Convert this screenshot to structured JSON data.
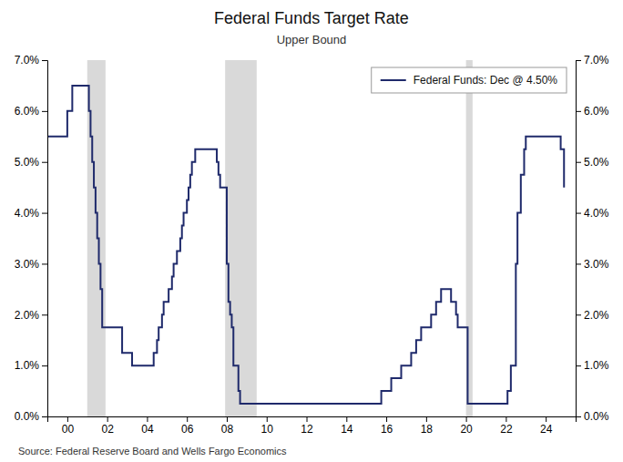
{
  "chart_data": {
    "type": "line",
    "title": "Federal Funds Target Rate",
    "subtitle": "Upper Bound",
    "annotations": [
      "Source: Federal Reserve Board and Wells Fargo Economics"
    ],
    "x": [
      1999.0,
      1999.083,
      1999.167,
      1999.25,
      1999.333,
      1999.417,
      1999.5,
      1999.583,
      1999.667,
      1999.75,
      1999.833,
      1999.917,
      2000.0,
      2000.083,
      2000.167,
      2000.25,
      2000.333,
      2000.417,
      2000.5,
      2000.583,
      2000.667,
      2000.75,
      2000.833,
      2000.917,
      2001.0,
      2001.083,
      2001.167,
      2001.25,
      2001.333,
      2001.417,
      2001.5,
      2001.583,
      2001.667,
      2001.75,
      2001.833,
      2001.917,
      2002.0,
      2002.083,
      2002.167,
      2002.25,
      2002.333,
      2002.417,
      2002.5,
      2002.583,
      2002.667,
      2002.75,
      2002.833,
      2002.917,
      2003.0,
      2003.083,
      2003.167,
      2003.25,
      2003.333,
      2003.417,
      2003.5,
      2003.583,
      2003.667,
      2003.75,
      2003.833,
      2003.917,
      2004.0,
      2004.083,
      2004.167,
      2004.25,
      2004.333,
      2004.417,
      2004.5,
      2004.583,
      2004.667,
      2004.75,
      2004.833,
      2004.917,
      2005.0,
      2005.083,
      2005.167,
      2005.25,
      2005.333,
      2005.417,
      2005.5,
      2005.583,
      2005.667,
      2005.75,
      2005.833,
      2005.917,
      2006.0,
      2006.083,
      2006.167,
      2006.25,
      2006.333,
      2006.417,
      2006.5,
      2006.583,
      2006.667,
      2006.75,
      2006.833,
      2006.917,
      2007.0,
      2007.083,
      2007.167,
      2007.25,
      2007.333,
      2007.417,
      2007.5,
      2007.583,
      2007.667,
      2007.75,
      2007.833,
      2007.917,
      2008.0,
      2008.083,
      2008.167,
      2008.25,
      2008.333,
      2008.417,
      2008.5,
      2008.583,
      2008.667,
      2008.75,
      2008.833,
      2008.917,
      2009.0,
      2009.083,
      2009.167,
      2009.25,
      2009.333,
      2009.417,
      2009.5,
      2009.583,
      2009.667,
      2009.75,
      2009.833,
      2009.917,
      2010.0,
      2010.083,
      2010.5,
      2011.0,
      2011.5,
      2012.0,
      2012.5,
      2013.0,
      2013.5,
      2014.0,
      2014.5,
      2015.0,
      2015.25,
      2015.5,
      2015.75,
      2016.0,
      2016.25,
      2016.5,
      2016.75,
      2017.0,
      2017.083,
      2017.25,
      2017.5,
      2017.75,
      2018.0,
      2018.083,
      2018.25,
      2018.5,
      2018.75,
      2019.0,
      2019.083,
      2019.25,
      2019.5,
      2019.583,
      2019.75,
      2019.917,
      2020.0,
      2020.083,
      2020.25,
      2020.5,
      2020.75,
      2021.0,
      2021.5,
      2022.0,
      2022.083,
      2022.25,
      2022.5,
      2022.583,
      2022.75,
      2022.917,
      2023.0,
      2023.083,
      2023.25,
      2023.5,
      2023.75,
      2024.0,
      2024.083,
      2024.25,
      2024.5,
      2024.75,
      2024.917
    ],
    "series": [
      {
        "name": "Federal Funds: Dec @ 4.50%",
        "color": "#1f2a6b",
        "line_style": "step",
        "values": [
          0.055,
          0.055,
          0.055,
          0.055,
          0.055,
          0.055,
          0.055,
          0.055,
          0.055,
          0.055,
          0.055,
          0.055,
          0.06,
          0.06,
          0.06,
          0.065,
          0.065,
          0.065,
          0.065,
          0.065,
          0.065,
          0.065,
          0.065,
          0.065,
          0.065,
          0.06,
          0.055,
          0.05,
          0.045,
          0.04,
          0.035,
          0.03,
          0.025,
          0.0175,
          0.0175,
          0.0175,
          0.0175,
          0.0175,
          0.0175,
          0.0175,
          0.0175,
          0.0175,
          0.0175,
          0.0175,
          0.0175,
          0.0125,
          0.0125,
          0.0125,
          0.0125,
          0.0125,
          0.0125,
          0.01,
          0.01,
          0.01,
          0.01,
          0.01,
          0.01,
          0.01,
          0.01,
          0.01,
          0.01,
          0.01,
          0.01,
          0.01,
          0.0125,
          0.0125,
          0.015,
          0.0175,
          0.0175,
          0.02,
          0.0225,
          0.0225,
          0.0225,
          0.025,
          0.025,
          0.0275,
          0.03,
          0.03,
          0.0325,
          0.0325,
          0.035,
          0.0375,
          0.04,
          0.04,
          0.0425,
          0.045,
          0.0475,
          0.05,
          0.05,
          0.0525,
          0.0525,
          0.0525,
          0.0525,
          0.0525,
          0.0525,
          0.0525,
          0.0525,
          0.0525,
          0.0525,
          0.0525,
          0.0525,
          0.0525,
          0.05,
          0.0475,
          0.045,
          0.045,
          0.045,
          0.045,
          0.03,
          0.0225,
          0.02,
          0.0175,
          0.01,
          0.01,
          0.01,
          0.005,
          0.0025,
          0.0025,
          0.0025,
          0.0025,
          0.0025,
          0.0025,
          0.0025,
          0.0025,
          0.0025,
          0.0025,
          0.0025,
          0.0025,
          0.0025,
          0.0025,
          0.0025,
          0.0025,
          0.0025,
          0.0025,
          0.0025,
          0.0025,
          0.0025,
          0.0025,
          0.0025,
          0.0025,
          0.0025,
          0.0025,
          0.0025,
          0.0025,
          0.0025,
          0.0025,
          0.005,
          0.005,
          0.0075,
          0.0075,
          0.01,
          0.01,
          0.01,
          0.0125,
          0.015,
          0.0175,
          0.0175,
          0.0175,
          0.02,
          0.0225,
          0.025,
          0.025,
          0.025,
          0.0225,
          0.02,
          0.0175,
          0.0175,
          0.0175,
          0.0175,
          0.0025,
          0.0025,
          0.0025,
          0.0025,
          0.0025,
          0.0025,
          0.0025,
          0.005,
          0.01,
          0.03,
          0.04,
          0.0475,
          0.0525,
          0.055,
          0.055,
          0.055,
          0.055,
          0.055,
          0.055,
          0.055,
          0.055,
          0.055,
          0.0525,
          0.045
        ]
      }
    ],
    "recession_bands": [
      [
        2001.0,
        2001.917
      ],
      [
        2007.917,
        2009.5
      ]
    ],
    "covid_band": [
      2020.0,
      2020.33
    ],
    "xlim": [
      1999.0,
      2025.5
    ],
    "xticks": [
      {
        "value": 2000,
        "label": "00"
      },
      {
        "value": 2002,
        "label": "02"
      },
      {
        "value": 2004,
        "label": "04"
      },
      {
        "value": 2006,
        "label": "06"
      },
      {
        "value": 2008,
        "label": "08"
      },
      {
        "value": 2010,
        "label": "10"
      },
      {
        "value": 2012,
        "label": "12"
      },
      {
        "value": 2014,
        "label": "14"
      },
      {
        "value": 2016,
        "label": "16"
      },
      {
        "value": 2018,
        "label": "18"
      },
      {
        "value": 2020,
        "label": "20"
      },
      {
        "value": 2022,
        "label": "22"
      },
      {
        "value": 2024,
        "label": "24"
      }
    ],
    "ylim": [
      0.0,
      0.07
    ],
    "yticks": [
      {
        "value": 0.0,
        "label": "0.0%"
      },
      {
        "value": 0.01,
        "label": "1.0%"
      },
      {
        "value": 0.02,
        "label": "2.0%"
      },
      {
        "value": 0.03,
        "label": "3.0%"
      },
      {
        "value": 0.04,
        "label": "4.0%"
      },
      {
        "value": 0.05,
        "label": "5.0%"
      },
      {
        "value": 0.06,
        "label": "6.0%"
      },
      {
        "value": 0.07,
        "label": "7.0%"
      }
    ],
    "y2lim": [
      0.0,
      0.07
    ],
    "y2ticks": [
      {
        "value": 0.0,
        "label": "0.0%"
      },
      {
        "value": 0.01,
        "label": "1.0%"
      },
      {
        "value": 0.02,
        "label": "2.0%"
      },
      {
        "value": 0.03,
        "label": "3.0%"
      },
      {
        "value": 0.04,
        "label": "4.0%"
      },
      {
        "value": 0.05,
        "label": "5.0%"
      },
      {
        "value": 0.06,
        "label": "6.0%"
      },
      {
        "value": 0.07,
        "label": "7.0%"
      }
    ],
    "grid": false,
    "legend": "upper right"
  }
}
